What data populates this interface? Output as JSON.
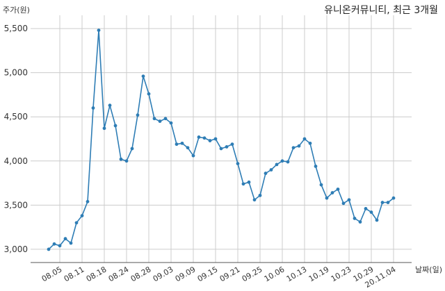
{
  "chart_data": {
    "type": "line",
    "title": "유니온커뮤니티, 최근 3개월",
    "ylabel": "주가(원)",
    "xlabel": "날짜(일)",
    "ylim": [
      2850,
      5650
    ],
    "yticks": [
      3000,
      3500,
      4000,
      4500,
      5000,
      5500
    ],
    "ytick_labels": [
      "3,000",
      "3,500",
      "4,000",
      "4,500",
      "5,000",
      "5,500"
    ],
    "xtick_labels": [
      "08.05",
      "08.11",
      "08.18",
      "08.24",
      "08.28",
      "09.03",
      "09.09",
      "09.15",
      "09.21",
      "09.25",
      "10.06",
      "10.13",
      "10.19",
      "10.23",
      "10.29",
      "20.11.04"
    ],
    "xtick_indices": [
      2,
      6,
      10,
      14,
      18,
      22,
      26,
      30,
      34,
      38,
      42,
      46,
      50,
      54,
      58,
      62
    ],
    "grid": true,
    "series": [
      {
        "values": [
          3000,
          3060,
          3040,
          3120,
          3070,
          3300,
          3380,
          3540,
          4600,
          5480,
          4370,
          4630,
          4400,
          4020,
          4000,
          4140,
          4520,
          4960,
          4760,
          4480,
          4450,
          4480,
          4430,
          4190,
          4200,
          4150,
          4060,
          4270,
          4260,
          4230,
          4250,
          4140,
          4160,
          4190,
          3970,
          3740,
          3760,
          3560,
          3610,
          3860,
          3900,
          3960,
          4000,
          3990,
          4150,
          4170,
          4250,
          4200,
          3940,
          3730,
          3580,
          3640,
          3680,
          3520,
          3560,
          3350,
          3310,
          3460,
          3420,
          3330,
          3530,
          3530,
          3580
        ]
      }
    ],
    "line_color": "#2e7db5",
    "grid_color": "#cccccc"
  }
}
